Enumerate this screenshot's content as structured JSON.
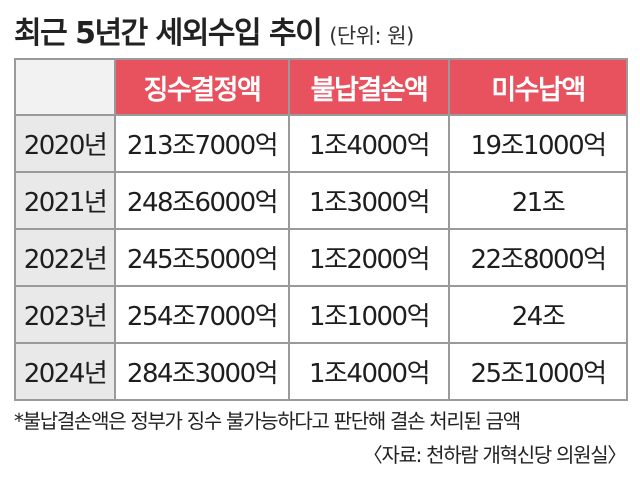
{
  "title": "최근 5년간 세외수입 추이",
  "unit": "(단위: 원)",
  "table": {
    "headers": [
      "징수결정액",
      "불납결손액",
      "미수납액"
    ],
    "rows": [
      {
        "year": "2020년",
        "collection": "213조7000억",
        "loss": "1조4000억",
        "uncollected": "19조1000억"
      },
      {
        "year": "2021년",
        "collection": "248조6000억",
        "loss": "1조3000억",
        "uncollected": "21조"
      },
      {
        "year": "2022년",
        "collection": "245조5000억",
        "loss": "1조2000억",
        "uncollected": "22조8000억"
      },
      {
        "year": "2023년",
        "collection": "254조7000억",
        "loss": "1조1000억",
        "uncollected": "24조"
      },
      {
        "year": "2024년",
        "collection": "284조3000억",
        "loss": "1조4000억",
        "uncollected": "25조1000억"
      }
    ]
  },
  "note": "*불납결손액은 정부가 징수 불가능하다고 판단해 결손 처리된 금액",
  "source": "〈자료: 천하람 개혁신당 의원실〉",
  "colors": {
    "header_bg": "#e8525f",
    "header_text": "#ffffff",
    "year_bg": "#e9e9e9",
    "border": "#9a9a9a"
  }
}
